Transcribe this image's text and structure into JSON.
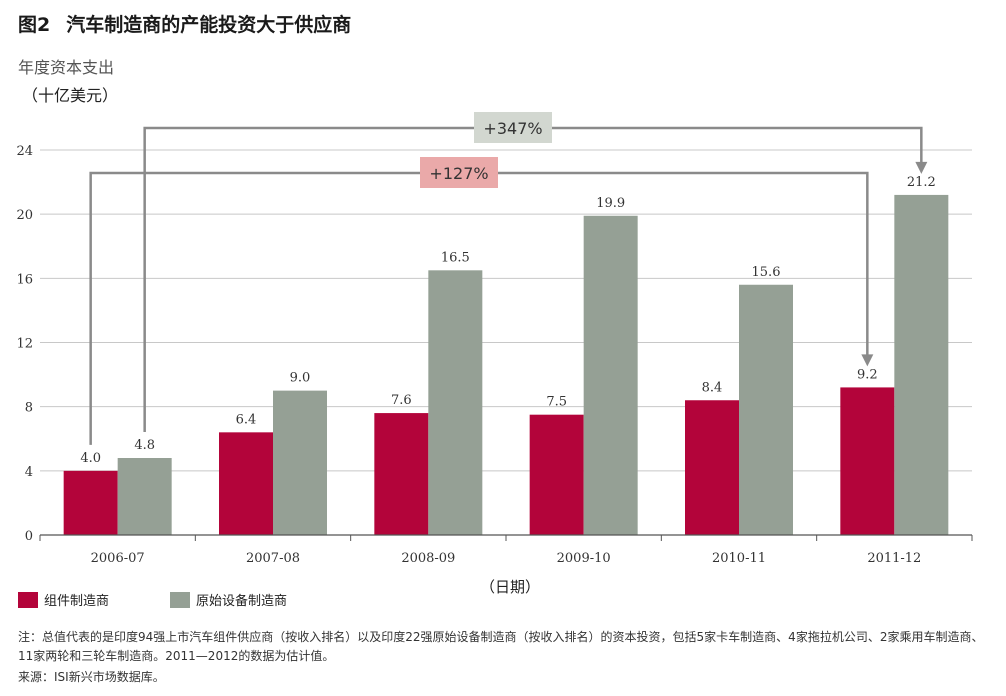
{
  "figure": {
    "number": "图2",
    "title": "汽车制造商的产能投资大于供应商"
  },
  "axis": {
    "ylabel_line1": "年度资本支出",
    "ylabel_line2": "（十亿美元）",
    "xlabel": "（日期）"
  },
  "annotations": {
    "oem_growth": "+347%",
    "supplier_growth": "+127%"
  },
  "legend": {
    "supplier": "组件制造商",
    "oem": "原始设备制造商"
  },
  "note": "注：总值代表的是印度94强上市汽车组件供应商（按收入排名）以及印度22强原始设备制造商（按收入排名）的资本投资，包括5家卡车制造商、4家拖拉机公司、2家乘用车制造商、11家两轮和三轮车制造商。2011—2012的数据为估计值。",
  "source": "来源：ISI新兴市场数据库。",
  "colors": {
    "supplier": "#b3043a",
    "oem": "#95a095",
    "supplier_box": "#eaa9a9",
    "oem_box": "#d2d7d0",
    "connector": "#8a8a8a"
  },
  "chart_data": {
    "type": "bar",
    "categories": [
      "2006-07",
      "2007-08",
      "2008-09",
      "2009-10",
      "2010-11",
      "2011-12"
    ],
    "series": [
      {
        "name": "组件制造商",
        "values": [
          4.0,
          6.4,
          7.6,
          7.5,
          8.4,
          9.2
        ],
        "labels": [
          "4.0",
          "6.4",
          "7.6",
          "7.5",
          "8.4",
          "9.2"
        ]
      },
      {
        "name": "原始设备制造商",
        "values": [
          4.8,
          9.0,
          16.5,
          19.9,
          15.6,
          21.2
        ],
        "labels": [
          "4.8",
          "9.0",
          "16.5",
          "19.9",
          "15.6",
          "21.2"
        ]
      }
    ],
    "yticks": [
      "0",
      "4",
      "8",
      "12",
      "16",
      "20",
      "24"
    ],
    "ylim": [
      0,
      24
    ],
    "grid": true,
    "legend_position": "bottom-left"
  }
}
